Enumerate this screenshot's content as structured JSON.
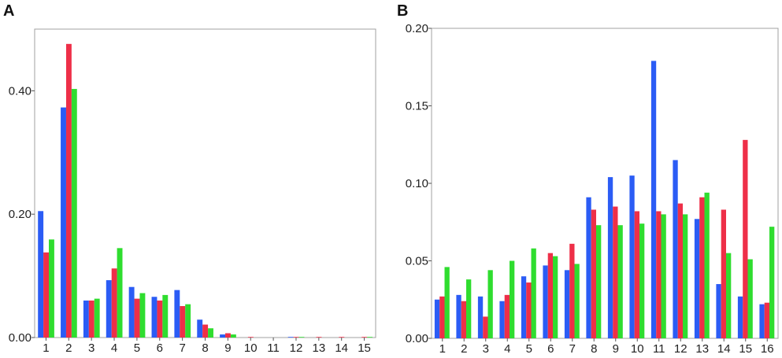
{
  "colors": {
    "blue": "#2b5cf5",
    "red": "#ee2f48",
    "green": "#2fdd2f"
  },
  "chart_data": [
    {
      "panel": "A",
      "type": "bar",
      "categories": [
        "1",
        "2",
        "3",
        "4",
        "5",
        "6",
        "7",
        "8",
        "9",
        "10",
        "11",
        "12",
        "13",
        "14",
        "15"
      ],
      "ylim": [
        0,
        0.5
      ],
      "yticks": [
        "0.00",
        "0.20",
        "0.40"
      ],
      "ytick_values": [
        0.0,
        0.2,
        0.4
      ],
      "grid": false,
      "series": [
        {
          "color": "blue",
          "values": [
            0.205,
            0.373,
            0.06,
            0.093,
            0.082,
            0.066,
            0.077,
            0.029,
            0.005,
            0.0,
            0.0,
            0.001,
            0.0,
            0.0,
            0.0
          ]
        },
        {
          "color": "red",
          "values": [
            0.138,
            0.476,
            0.06,
            0.112,
            0.063,
            0.06,
            0.051,
            0.021,
            0.007,
            0.001,
            0.0,
            0.001,
            0.001,
            0.001,
            0.001
          ]
        },
        {
          "color": "green",
          "values": [
            0.159,
            0.403,
            0.063,
            0.145,
            0.072,
            0.069,
            0.054,
            0.015,
            0.005,
            0.0,
            0.0,
            0.001,
            0.0,
            0.0,
            0.001
          ]
        }
      ]
    },
    {
      "panel": "B",
      "type": "bar",
      "categories": [
        "1",
        "2",
        "3",
        "4",
        "5",
        "6",
        "7",
        "8",
        "9",
        "10",
        "11",
        "12",
        "13",
        "14",
        "15",
        "16"
      ],
      "ylim": [
        0,
        0.2
      ],
      "yticks": [
        "0.00",
        "0.05",
        "0.10",
        "0.15",
        "0.20"
      ],
      "ytick_values": [
        0.0,
        0.05,
        0.1,
        0.15,
        0.2
      ],
      "grid": false,
      "series": [
        {
          "color": "blue",
          "values": [
            0.025,
            0.028,
            0.027,
            0.024,
            0.04,
            0.047,
            0.044,
            0.091,
            0.104,
            0.105,
            0.179,
            0.115,
            0.077,
            0.035,
            0.027,
            0.022
          ]
        },
        {
          "color": "red",
          "values": [
            0.027,
            0.024,
            0.014,
            0.028,
            0.036,
            0.055,
            0.061,
            0.083,
            0.085,
            0.082,
            0.082,
            0.087,
            0.091,
            0.083,
            0.128,
            0.023
          ]
        },
        {
          "color": "green",
          "values": [
            0.046,
            0.038,
            0.044,
            0.05,
            0.058,
            0.053,
            0.048,
            0.073,
            0.073,
            0.074,
            0.08,
            0.08,
            0.094,
            0.055,
            0.051,
            0.072
          ]
        }
      ]
    }
  ]
}
